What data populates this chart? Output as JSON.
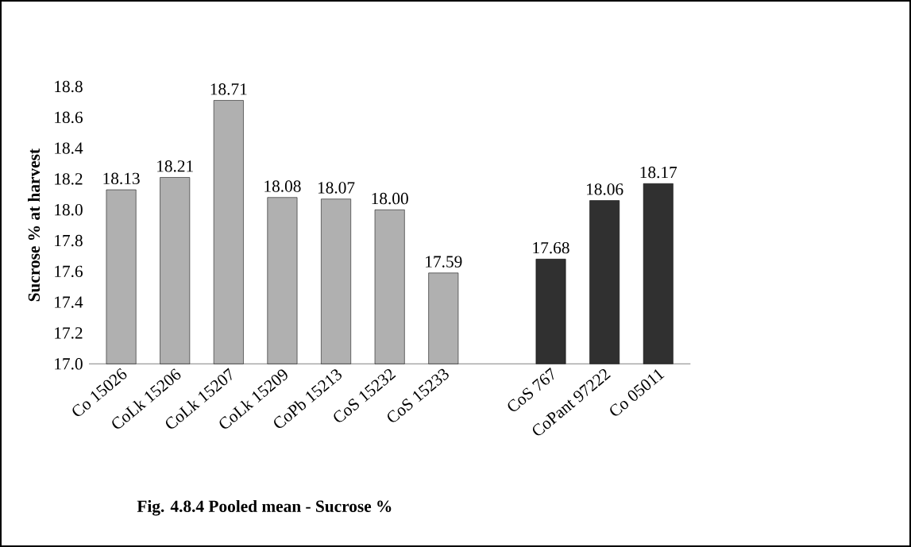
{
  "chart_data": {
    "type": "bar",
    "title": "Fig. 4.8.4 Pooled mean - Sucrose %",
    "ylabel": "Sucrose % at harvest",
    "categories": [
      "Co 15026",
      "CoLk 15206",
      "CoLk 15207",
      "CoLk 15209",
      "CoPb 15213",
      "CoS 15232",
      "CoS 15233",
      null,
      "CoS 767",
      "CoPant 97222",
      "Co 05011"
    ],
    "values": [
      18.13,
      18.21,
      18.71,
      18.08,
      18.07,
      18.0,
      17.59,
      null,
      17.68,
      18.06,
      18.17
    ],
    "value_labels": [
      "18.13",
      "18.21",
      "18.71",
      "18.08",
      "18.07",
      "18.00",
      "17.59",
      null,
      "17.68",
      "18.06",
      "18.17"
    ],
    "colors": [
      "#b0b0b0",
      "#b0b0b0",
      "#b0b0b0",
      "#b0b0b0",
      "#b0b0b0",
      "#b0b0b0",
      "#b0b0b0",
      null,
      "#303030",
      "#303030",
      "#303030"
    ],
    "ylim": [
      17.0,
      18.8
    ],
    "yticks": [
      {
        "value": 17.0,
        "label": "17.0"
      },
      17.2,
      17.4,
      17.6,
      17.8,
      {
        "value": 18.0,
        "label": "18.0"
      },
      18.2,
      18.4,
      18.6,
      18.8
    ],
    "grid": false
  }
}
